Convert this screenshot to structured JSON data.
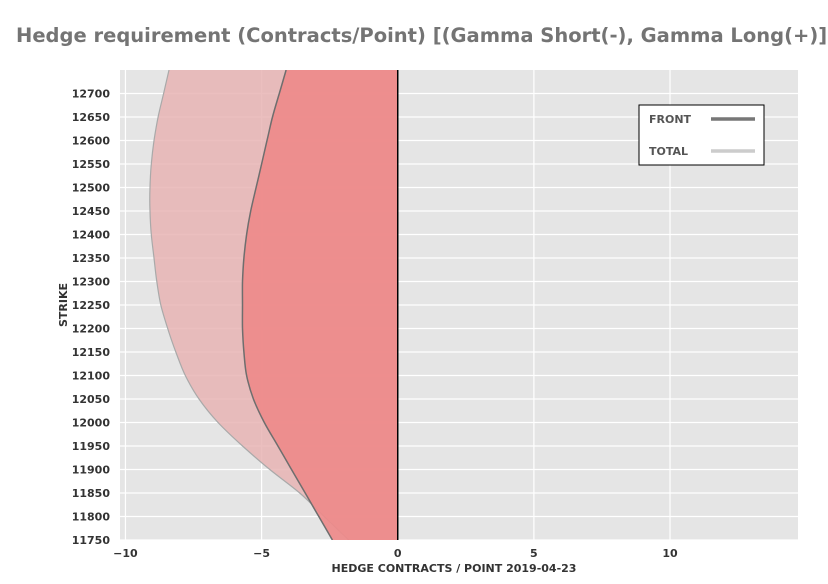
{
  "chart_data": {
    "type": "area",
    "title": "Hedge requirement (Contracts/Point) [(Gamma Short(-), Gamma Long(+)]",
    "xlabel": "HEDGE CONTRACTS / POINT 2019-04-23",
    "ylabel": "STRIKE",
    "xlim": [
      -10.2,
      14.7
    ],
    "ylim": [
      11750,
      12750
    ],
    "x_ticks": [
      -10,
      -5,
      0,
      5,
      10
    ],
    "y_ticks": [
      11750,
      11800,
      11850,
      11900,
      11950,
      12000,
      12050,
      12100,
      12150,
      12200,
      12250,
      12300,
      12350,
      12400,
      12450,
      12500,
      12550,
      12600,
      12650,
      12700
    ],
    "grid": true,
    "legend_position": "top-right",
    "orientation": "horizontal",
    "series": [
      {
        "name": "FRONT",
        "color": "#777777",
        "fill": "#ee8a8a",
        "strike": [
          11750,
          11800,
          11850,
          11900,
          11950,
          12000,
          12050,
          12100,
          12150,
          12200,
          12250,
          12300,
          12350,
          12400,
          12450,
          12500,
          12550,
          12600,
          12650,
          12700,
          12750
        ],
        "values": [
          -2.4,
          -2.9,
          -3.4,
          -3.9,
          -4.4,
          -4.9,
          -5.3,
          -5.55,
          -5.65,
          -5.7,
          -5.7,
          -5.7,
          -5.65,
          -5.55,
          -5.4,
          -5.2,
          -5.0,
          -4.8,
          -4.6,
          -4.35,
          -4.1
        ]
      },
      {
        "name": "TOTAL",
        "color": "#cccccc",
        "fill": "#e8b4b4",
        "strike": [
          11750,
          11800,
          11850,
          11900,
          11950,
          12000,
          12050,
          12100,
          12150,
          12200,
          12250,
          12300,
          12350,
          12400,
          12450,
          12500,
          12550,
          12600,
          12650,
          12700,
          12750
        ],
        "values": [
          -1.8,
          -2.7,
          -3.6,
          -4.7,
          -5.7,
          -6.6,
          -7.3,
          -7.8,
          -8.15,
          -8.45,
          -8.7,
          -8.85,
          -8.95,
          -9.05,
          -9.1,
          -9.1,
          -9.05,
          -8.95,
          -8.8,
          -8.6,
          -8.4
        ]
      }
    ]
  }
}
